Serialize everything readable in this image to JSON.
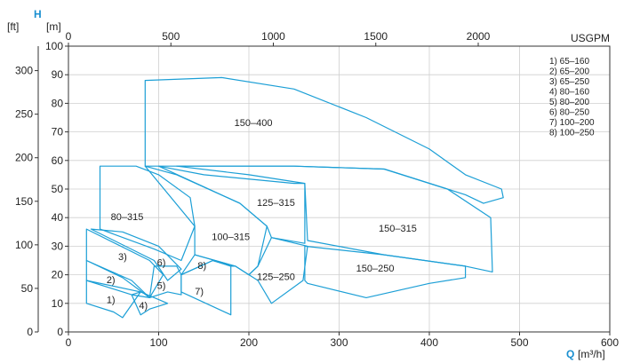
{
  "chart_data": {
    "type": "area",
    "colors": {
      "curve": "#1c9fd6",
      "grid": "#cfcfcf",
      "accent": "#1a8fd0"
    },
    "x_axis": {
      "letter": "Q",
      "unit": "[m³/h]",
      "range": [
        0,
        600
      ],
      "ticks": [
        "0",
        "100",
        "200",
        "300",
        "400",
        "500",
        "600"
      ]
    },
    "x2_axis": {
      "unit": "USGPM",
      "range": [
        0,
        2642
      ],
      "ticks": [
        "0",
        "500",
        "1000",
        "1500",
        "2000"
      ],
      "tick_values": [
        0,
        500,
        1000,
        1500,
        2000
      ]
    },
    "y_axis": {
      "letter": "H",
      "unit": "[m]",
      "range": [
        0,
        100
      ],
      "ticks": [
        "0",
        "10",
        "20",
        "30",
        "40",
        "50",
        "60",
        "70",
        "80",
        "90",
        "100"
      ]
    },
    "y2_axis": {
      "unit": "[ft]",
      "range": [
        0,
        328.1
      ],
      "ticks": [
        "0",
        "50",
        "100",
        "150",
        "200",
        "250",
        "300"
      ],
      "tick_values": [
        0,
        50,
        100,
        150,
        200,
        250,
        300
      ]
    },
    "grid": true,
    "legend": [
      "1) 65–160",
      "2) 65–200",
      "3) 65–250",
      "4) 80–160",
      "5) 80–200",
      "6) 80–250",
      "7) 100–200",
      "8) 100–250"
    ],
    "regions": [
      {
        "label": "1)",
        "label_at": [
          47,
          11
        ],
        "points": [
          [
            20,
            10
          ],
          [
            20,
            18
          ],
          [
            80,
            14
          ],
          [
            60,
            5
          ],
          [
            50,
            7
          ]
        ]
      },
      {
        "label": "2)",
        "label_at": [
          47,
          18
        ],
        "points": [
          [
            20,
            18
          ],
          [
            20,
            25
          ],
          [
            60,
            19
          ],
          [
            90,
            12
          ],
          [
            70,
            13
          ]
        ]
      },
      {
        "label": "3)",
        "label_at": [
          60,
          26
        ],
        "points": [
          [
            20,
            25
          ],
          [
            20,
            36
          ],
          [
            90,
            25
          ],
          [
            105,
            20
          ],
          [
            90,
            12
          ],
          [
            70,
            18
          ]
        ]
      },
      {
        "label": "4)",
        "label_at": [
          83,
          9
        ],
        "points": [
          [
            70,
            13
          ],
          [
            80,
            14
          ],
          [
            110,
            10
          ],
          [
            90,
            8
          ],
          [
            80,
            6
          ]
        ]
      },
      {
        "label": "5)",
        "label_at": [
          103,
          16
        ],
        "points": [
          [
            95,
            23
          ],
          [
            90,
            12
          ],
          [
            110,
            14
          ],
          [
            125,
            13
          ],
          [
            125,
            20
          ],
          [
            120,
            23
          ]
        ]
      },
      {
        "label": "6)",
        "label_at": [
          103,
          24
        ],
        "points": [
          [
            25,
            36
          ],
          [
            60,
            35
          ],
          [
            100,
            30
          ],
          [
            125,
            22
          ],
          [
            110,
            18
          ],
          [
            95,
            25
          ]
        ]
      },
      {
        "label": "7)",
        "label_at": [
          145,
          14
        ],
        "points": [
          [
            125,
            20
          ],
          [
            125,
            14
          ],
          [
            180,
            6
          ],
          [
            180,
            23
          ],
          [
            160,
            25
          ]
        ]
      },
      {
        "label": "8)",
        "label_at": [
          148,
          23
        ],
        "points": [
          [
            125,
            20
          ],
          [
            140,
            27
          ],
          [
            185,
            23
          ],
          [
            180,
            23
          ],
          [
            160,
            25
          ]
        ]
      },
      {
        "label": "80–315",
        "label_at": [
          65,
          40
        ],
        "points": [
          [
            35,
            58
          ],
          [
            35,
            36
          ],
          [
            95,
            29
          ],
          [
            125,
            25
          ],
          [
            140,
            37
          ],
          [
            135,
            47
          ],
          [
            100,
            55
          ],
          [
            75,
            58
          ]
        ]
      },
      {
        "label": "100–315",
        "label_at": [
          180,
          33
        ],
        "points": [
          [
            85,
            58
          ],
          [
            120,
            55
          ],
          [
            190,
            45
          ],
          [
            220,
            37
          ],
          [
            210,
            23
          ],
          [
            200,
            20
          ],
          [
            185,
            23
          ],
          [
            140,
            27
          ],
          [
            140,
            37
          ]
        ]
      },
      {
        "label": "125–315",
        "label_at": [
          230,
          45
        ],
        "points": [
          [
            100,
            58
          ],
          [
            150,
            55
          ],
          [
            250,
            52
          ],
          [
            262,
            52
          ],
          [
            262,
            31
          ],
          [
            225,
            33
          ],
          [
            220,
            37
          ],
          [
            190,
            45
          ]
        ]
      },
      {
        "label": "125–250",
        "label_at": [
          230,
          19
        ],
        "points": [
          [
            185,
            23
          ],
          [
            200,
            20
          ],
          [
            210,
            23
          ],
          [
            225,
            33
          ],
          [
            265,
            30
          ],
          [
            260,
            18
          ],
          [
            225,
            10
          ],
          [
            210,
            18
          ]
        ]
      },
      {
        "label": "150–400",
        "label_at": [
          205,
          73
        ],
        "points": [
          [
            85,
            58
          ],
          [
            85,
            88
          ],
          [
            170,
            89
          ],
          [
            250,
            85
          ],
          [
            330,
            75
          ],
          [
            400,
            64
          ],
          [
            440,
            55
          ],
          [
            480,
            50
          ],
          [
            482,
            47
          ],
          [
            460,
            45
          ],
          [
            440,
            48
          ],
          [
            350,
            57
          ],
          [
            250,
            58
          ],
          [
            180,
            58
          ]
        ]
      },
      {
        "label": "150–315",
        "label_at": [
          365,
          36
        ],
        "points": [
          [
            120,
            58
          ],
          [
            250,
            58
          ],
          [
            350,
            57
          ],
          [
            420,
            50
          ],
          [
            468,
            40
          ],
          [
            470,
            21
          ],
          [
            455,
            22
          ],
          [
            440,
            23
          ],
          [
            350,
            27
          ],
          [
            265,
            32
          ],
          [
            262,
            52
          ],
          [
            200,
            55
          ]
        ]
      },
      {
        "label": "150–250",
        "label_at": [
          340,
          22
        ],
        "points": [
          [
            262,
            30
          ],
          [
            350,
            27
          ],
          [
            440,
            23
          ],
          [
            440,
            19
          ],
          [
            400,
            17
          ],
          [
            330,
            12
          ],
          [
            265,
            17
          ],
          [
            262,
            18
          ]
        ]
      }
    ]
  }
}
